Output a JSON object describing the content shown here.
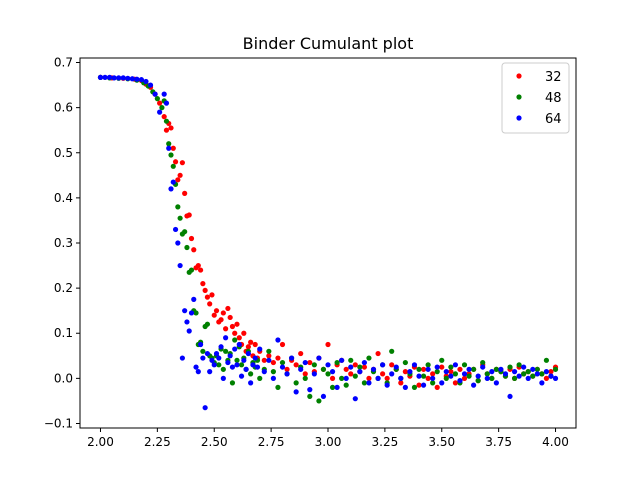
{
  "chart_data": {
    "type": "scatter",
    "title": "Binder Cumulant plot",
    "xlabel": "",
    "ylabel": "",
    "xlim": [
      1.91,
      4.09
    ],
    "ylim": [
      -0.11,
      0.71
    ],
    "xticks": [
      "2.00",
      "2.25",
      "2.50",
      "2.75",
      "3.00",
      "3.25",
      "3.50",
      "3.75",
      "4.00"
    ],
    "yticks": [
      "−0.1",
      "0.0",
      "0.1",
      "0.2",
      "0.3",
      "0.4",
      "0.5",
      "0.6",
      "0.7"
    ],
    "xtick_values": [
      2.0,
      2.25,
      2.5,
      2.75,
      3.0,
      3.25,
      3.5,
      3.75,
      4.0
    ],
    "ytick_values": [
      -0.1,
      0.0,
      0.1,
      0.2,
      0.3,
      0.4,
      0.5,
      0.6,
      0.7
    ],
    "grid": false,
    "legend_position": "top-right",
    "series": [
      {
        "name": "32",
        "color": "#ff0000",
        "x": [
          2.0,
          2.05,
          2.1,
          2.15,
          2.18,
          2.2,
          2.22,
          2.24,
          2.26,
          2.28,
          2.29,
          2.3,
          2.31,
          2.32,
          2.33,
          2.34,
          2.35,
          2.36,
          2.37,
          2.38,
          2.39,
          2.4,
          2.41,
          2.42,
          2.43,
          2.44,
          2.45,
          2.46,
          2.47,
          2.48,
          2.49,
          2.5,
          2.51,
          2.52,
          2.53,
          2.54,
          2.55,
          2.56,
          2.57,
          2.58,
          2.59,
          2.6,
          2.61,
          2.62,
          2.63,
          2.64,
          2.65,
          2.66,
          2.67,
          2.68,
          2.69,
          2.7,
          2.72,
          2.74,
          2.76,
          2.78,
          2.8,
          2.82,
          2.84,
          2.86,
          2.88,
          2.9,
          2.92,
          2.94,
          2.96,
          2.98,
          3.0,
          3.02,
          3.04,
          3.06,
          3.08,
          3.1,
          3.12,
          3.14,
          3.16,
          3.18,
          3.2,
          3.22,
          3.24,
          3.26,
          3.28,
          3.3,
          3.32,
          3.34,
          3.36,
          3.38,
          3.4,
          3.42,
          3.44,
          3.46,
          3.48,
          3.5,
          3.52,
          3.54,
          3.56,
          3.58,
          3.6,
          3.62,
          3.64,
          3.66,
          3.68,
          3.7,
          3.72,
          3.74,
          3.76,
          3.78,
          3.8,
          3.82,
          3.84,
          3.86,
          3.88,
          3.9,
          3.92,
          3.94,
          3.96,
          3.98,
          4.0
        ],
        "y": [
          0.667,
          0.666,
          0.665,
          0.663,
          0.66,
          0.652,
          0.645,
          0.63,
          0.61,
          0.58,
          0.55,
          0.565,
          0.555,
          0.51,
          0.48,
          0.44,
          0.45,
          0.478,
          0.41,
          0.36,
          0.362,
          0.31,
          0.285,
          0.245,
          0.25,
          0.24,
          0.21,
          0.195,
          0.18,
          0.165,
          0.185,
          0.14,
          0.15,
          0.125,
          0.13,
          0.145,
          0.11,
          0.155,
          0.135,
          0.115,
          0.1,
          0.12,
          0.09,
          0.075,
          0.1,
          0.06,
          0.07,
          0.08,
          0.05,
          0.075,
          0.045,
          0.06,
          0.04,
          0.05,
          0.035,
          0.045,
          0.075,
          0.02,
          0.04,
          0.03,
          0.055,
          0.01,
          0.035,
          0.015,
          0.045,
          0.02,
          0.075,
          0.0,
          0.03,
          0.04,
          0.02,
          0.01,
          0.03,
          0.015,
          0.025,
          0.0,
          0.02,
          0.055,
          0.01,
          0.0,
          0.03,
          0.02,
          -0.01,
          0.015,
          0.005,
          0.025,
          -0.015,
          0.02,
          0.0,
          0.01,
          -0.02,
          0.025,
          0.005,
          0.015,
          -0.01,
          0.02,
          0.0,
          0.01,
          0.02,
          -0.005,
          0.03,
          0.01,
          0.0,
          0.02,
          0.015,
          0.005,
          0.02,
          0.0,
          0.025,
          0.01,
          0.015,
          0.005,
          0.02,
          0.01,
          0.0,
          0.015,
          0.025
        ]
      },
      {
        "name": "48",
        "color": "#008000",
        "x": [
          2.0,
          2.04,
          2.08,
          2.12,
          2.16,
          2.19,
          2.21,
          2.23,
          2.25,
          2.27,
          2.28,
          2.29,
          2.3,
          2.31,
          2.32,
          2.33,
          2.34,
          2.35,
          2.36,
          2.37,
          2.38,
          2.39,
          2.4,
          2.41,
          2.42,
          2.43,
          2.44,
          2.45,
          2.46,
          2.47,
          2.48,
          2.49,
          2.5,
          2.51,
          2.52,
          2.53,
          2.54,
          2.55,
          2.56,
          2.57,
          2.58,
          2.59,
          2.6,
          2.61,
          2.62,
          2.63,
          2.64,
          2.65,
          2.66,
          2.67,
          2.68,
          2.69,
          2.7,
          2.72,
          2.74,
          2.76,
          2.78,
          2.8,
          2.82,
          2.84,
          2.86,
          2.88,
          2.9,
          2.92,
          2.94,
          2.96,
          2.98,
          3.0,
          3.02,
          3.04,
          3.06,
          3.08,
          3.1,
          3.12,
          3.14,
          3.16,
          3.18,
          3.2,
          3.22,
          3.24,
          3.26,
          3.28,
          3.3,
          3.32,
          3.34,
          3.36,
          3.38,
          3.4,
          3.42,
          3.44,
          3.46,
          3.48,
          3.5,
          3.52,
          3.54,
          3.56,
          3.58,
          3.6,
          3.62,
          3.64,
          3.66,
          3.68,
          3.7,
          3.72,
          3.74,
          3.76,
          3.78,
          3.8,
          3.82,
          3.84,
          3.86,
          3.88,
          3.9,
          3.92,
          3.94,
          3.96,
          3.98,
          4.0
        ],
        "y": [
          0.667,
          0.666,
          0.665,
          0.664,
          0.661,
          0.655,
          0.648,
          0.635,
          0.62,
          0.6,
          0.615,
          0.57,
          0.52,
          0.495,
          0.47,
          0.43,
          0.38,
          0.355,
          0.32,
          0.325,
          0.29,
          0.235,
          0.24,
          0.15,
          0.145,
          0.075,
          0.08,
          0.06,
          0.115,
          0.12,
          0.05,
          0.045,
          0.035,
          0.05,
          0.03,
          0.065,
          0.02,
          0.06,
          0.04,
          0.055,
          -0.01,
          0.085,
          0.04,
          0.07,
          0.03,
          0.045,
          0.02,
          0.06,
          0.01,
          0.035,
          0.025,
          0.04,
          0.0,
          0.02,
          0.06,
          0.015,
          -0.02,
          0.035,
          0.01,
          0.045,
          -0.01,
          0.025,
          0.0,
          -0.04,
          0.03,
          -0.05,
          0.02,
          0.01,
          -0.02,
          0.035,
          0.0,
          -0.015,
          0.04,
          0.005,
          0.025,
          -0.01,
          0.045,
          0.015,
          0.0,
          0.03,
          -0.01,
          0.06,
          0.02,
          0.0,
          0.035,
          0.01,
          -0.02,
          0.02,
          0.005,
          0.03,
          -0.01,
          0.015,
          0.04,
          0.0,
          0.025,
          0.01,
          -0.01,
          0.03,
          0.005,
          0.02,
          -0.005,
          0.035,
          0.01,
          0.0,
          0.02,
          0.015,
          0.005,
          0.025,
          0.0,
          0.03,
          0.01,
          0.015,
          0.005,
          0.02,
          0.01,
          0.04,
          0.005,
          0.02
        ]
      },
      {
        "name": "64",
        "color": "#0000ff",
        "x": [
          2.0,
          2.02,
          2.04,
          2.06,
          2.08,
          2.1,
          2.12,
          2.14,
          2.16,
          2.18,
          2.2,
          2.22,
          2.24,
          2.26,
          2.28,
          2.29,
          2.3,
          2.31,
          2.32,
          2.33,
          2.34,
          2.35,
          2.36,
          2.37,
          2.38,
          2.39,
          2.4,
          2.41,
          2.42,
          2.43,
          2.44,
          2.45,
          2.46,
          2.47,
          2.48,
          2.49,
          2.5,
          2.51,
          2.52,
          2.53,
          2.54,
          2.55,
          2.56,
          2.57,
          2.58,
          2.59,
          2.6,
          2.61,
          2.62,
          2.63,
          2.64,
          2.65,
          2.66,
          2.67,
          2.68,
          2.69,
          2.7,
          2.72,
          2.74,
          2.76,
          2.78,
          2.8,
          2.82,
          2.84,
          2.86,
          2.88,
          2.9,
          2.92,
          2.94,
          2.96,
          2.98,
          3.0,
          3.02,
          3.04,
          3.06,
          3.08,
          3.1,
          3.12,
          3.14,
          3.16,
          3.18,
          3.2,
          3.22,
          3.24,
          3.26,
          3.28,
          3.3,
          3.32,
          3.34,
          3.36,
          3.38,
          3.4,
          3.42,
          3.44,
          3.46,
          3.48,
          3.5,
          3.52,
          3.54,
          3.56,
          3.58,
          3.6,
          3.62,
          3.64,
          3.66,
          3.68,
          3.7,
          3.72,
          3.74,
          3.76,
          3.78,
          3.8,
          3.82,
          3.84,
          3.86,
          3.88,
          3.9,
          3.92,
          3.94,
          3.96,
          3.98,
          4.0
        ],
        "y": [
          0.667,
          0.667,
          0.667,
          0.666,
          0.666,
          0.666,
          0.665,
          0.664,
          0.663,
          0.662,
          0.658,
          0.65,
          0.63,
          0.59,
          0.63,
          0.61,
          0.51,
          0.42,
          0.435,
          0.33,
          0.3,
          0.25,
          0.045,
          0.15,
          0.125,
          0.105,
          0.145,
          0.175,
          0.025,
          0.015,
          0.075,
          0.045,
          -0.065,
          0.055,
          0.015,
          0.04,
          0.03,
          0.055,
          0.045,
          0.07,
          0.0,
          0.09,
          0.035,
          0.05,
          0.025,
          0.065,
          0.03,
          0.075,
          0.005,
          0.04,
          0.02,
          0.055,
          -0.01,
          0.03,
          0.045,
          0.025,
          0.065,
          0.015,
          0.04,
          0.0,
          0.085,
          0.025,
          0.01,
          0.045,
          -0.03,
          0.02,
          0.035,
          -0.025,
          0.01,
          0.045,
          -0.04,
          0.03,
          0.015,
          -0.02,
          0.04,
          0.0,
          0.025,
          -0.045,
          0.015,
          0.035,
          -0.01,
          0.02,
          0.0,
          0.03,
          -0.015,
          0.01,
          0.025,
          0.0,
          -0.02,
          0.015,
          0.03,
          0.005,
          -0.015,
          0.02,
          0.0,
          0.025,
          -0.01,
          0.015,
          0.005,
          0.03,
          -0.005,
          0.01,
          0.02,
          -0.015,
          0.005,
          0.025,
          0.0,
          0.015,
          -0.01,
          0.02,
          0.01,
          -0.04,
          0.015,
          0.005,
          0.025,
          0.0,
          0.02,
          0.01,
          -0.01,
          0.015,
          0.005,
          0.0
        ]
      }
    ]
  }
}
